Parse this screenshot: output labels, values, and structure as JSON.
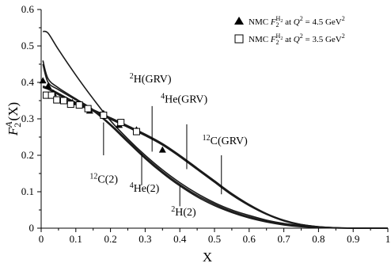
{
  "chart_data": {
    "type": "line",
    "xlabel": "X",
    "ylabel": "F_2^A(X)",
    "xlim": [
      0,
      1
    ],
    "ylim": [
      0,
      0.6
    ],
    "x_ticks": [
      "0",
      "0.1",
      "0.2",
      "0.3",
      "0.4",
      "0.5",
      "0.6",
      "0.7",
      "0.8",
      "0.9",
      "1"
    ],
    "y_ticks": [
      "0",
      "0.1",
      "0.2",
      "0.3",
      "0.4",
      "0.5",
      "0.6"
    ],
    "x_tick_values": [
      0,
      0.1,
      0.2,
      0.3,
      0.4,
      0.5,
      0.6,
      0.7,
      0.8,
      0.9,
      1
    ],
    "y_tick_values": [
      0,
      0.1,
      0.2,
      0.3,
      0.4,
      0.5,
      0.6
    ],
    "legend": [
      {
        "marker": "triangle-filled",
        "prefix": "NMC ",
        "F": "F",
        "sub": "2",
        "sup": "H",
        "supsub": "2",
        "mid": " at ",
        "Q": "Q",
        "qsup": "2",
        "rest": " = 4.5 GeV",
        "gsup": "2"
      },
      {
        "marker": "square-open",
        "prefix": "NMC ",
        "F": "F",
        "sub": "2",
        "sup": "H",
        "supsub": "2",
        "mid": " at ",
        "Q": "Q",
        "qsup": "2",
        "rest": " = 3.5 GeV",
        "gsup": "2"
      }
    ],
    "series": [
      {
        "x": [
          0.005,
          0.02,
          0.05,
          0.1,
          0.15,
          0.2,
          0.25,
          0.3,
          0.35,
          0.4,
          0.45,
          0.5,
          0.55,
          0.6,
          0.65,
          0.7,
          0.75,
          0.8,
          0.85,
          0.9,
          0.95,
          1.0
        ],
        "y": [
          0.54,
          0.535,
          0.49,
          0.42,
          0.355,
          0.295,
          0.245,
          0.2,
          0.16,
          0.125,
          0.095,
          0.07,
          0.05,
          0.035,
          0.022,
          0.013,
          0.007,
          0.003,
          0.001,
          0.0003,
          0.0001,
          0
        ]
      },
      {
        "x": [
          0.005,
          0.02,
          0.05,
          0.1,
          0.15,
          0.2,
          0.25,
          0.3,
          0.35,
          0.4,
          0.45,
          0.5,
          0.55,
          0.6,
          0.65,
          0.7,
          0.75,
          0.8,
          0.85,
          0.9,
          0.95,
          1.0
        ],
        "y": [
          0.46,
          0.41,
          0.385,
          0.355,
          0.325,
          0.285,
          0.24,
          0.195,
          0.155,
          0.12,
          0.09,
          0.066,
          0.046,
          0.031,
          0.019,
          0.011,
          0.005,
          0.002,
          0.0006,
          0.0002,
          5e-05,
          0
        ]
      },
      {
        "x": [
          0.005,
          0.02,
          0.05,
          0.1,
          0.15,
          0.2,
          0.25,
          0.3,
          0.35,
          0.4,
          0.45,
          0.5,
          0.55,
          0.6,
          0.65,
          0.7,
          0.75,
          0.8,
          0.85,
          0.9,
          0.95,
          1.0
        ],
        "y": [
          0.45,
          0.4,
          0.38,
          0.352,
          0.322,
          0.282,
          0.236,
          0.191,
          0.151,
          0.116,
          0.086,
          0.062,
          0.043,
          0.028,
          0.017,
          0.009,
          0.004,
          0.0015,
          0.0004,
          0.0001,
          3e-05,
          0
        ]
      },
      {
        "x": [
          0.005,
          0.02,
          0.05,
          0.1,
          0.15,
          0.2,
          0.25,
          0.3,
          0.35,
          0.4,
          0.45,
          0.5,
          0.55,
          0.6,
          0.65,
          0.7,
          0.75,
          0.8,
          0.85,
          0.9,
          0.95,
          1.0
        ],
        "y": [
          0.39,
          0.385,
          0.37,
          0.345,
          0.325,
          0.303,
          0.281,
          0.258,
          0.232,
          0.2,
          0.165,
          0.13,
          0.095,
          0.065,
          0.04,
          0.022,
          0.01,
          0.004,
          0.0012,
          0.0003,
          5e-05,
          0
        ]
      },
      {
        "x": [
          0.005,
          0.02,
          0.05,
          0.1,
          0.15,
          0.2,
          0.25,
          0.3,
          0.35,
          0.4,
          0.45,
          0.5,
          0.55,
          0.6,
          0.65,
          0.7,
          0.75,
          0.8,
          0.85,
          0.9,
          0.95,
          1.0
        ],
        "y": [
          0.388,
          0.383,
          0.368,
          0.343,
          0.323,
          0.301,
          0.279,
          0.256,
          0.23,
          0.198,
          0.163,
          0.128,
          0.093,
          0.063,
          0.039,
          0.021,
          0.01,
          0.004,
          0.0011,
          0.0003,
          5e-05,
          0
        ]
      },
      {
        "x": [
          0.005,
          0.02,
          0.05,
          0.1,
          0.15,
          0.2,
          0.25,
          0.3,
          0.35,
          0.4,
          0.45,
          0.5,
          0.55,
          0.6,
          0.65,
          0.7,
          0.75,
          0.8,
          0.85,
          0.9,
          0.95,
          1.0
        ],
        "y": [
          0.386,
          0.381,
          0.366,
          0.341,
          0.321,
          0.299,
          0.277,
          0.254,
          0.228,
          0.196,
          0.161,
          0.126,
          0.091,
          0.062,
          0.038,
          0.02,
          0.009,
          0.0035,
          0.001,
          0.0002,
          4e-05,
          0
        ]
      }
    ],
    "points_triangle": {
      "x": [
        0.005,
        0.02,
        0.035,
        0.06,
        0.09,
        0.14,
        0.18,
        0.225,
        0.275,
        0.35
      ],
      "y": [
        0.405,
        0.39,
        0.37,
        0.352,
        0.345,
        0.322,
        0.315,
        0.283,
        0.27,
        0.215
      ]
    },
    "points_square": {
      "x": [
        0.015,
        0.03,
        0.045,
        0.065,
        0.085,
        0.11,
        0.135,
        0.18,
        0.23,
        0.275
      ],
      "y": [
        0.365,
        0.365,
        0.352,
        0.35,
        0.34,
        0.338,
        0.328,
        0.31,
        0.29,
        0.265
      ]
    },
    "annotations": [
      {
        "id": "h2grv",
        "sup": "2",
        "label": "H(GRV)",
        "tx": 0.255,
        "ty": 0.4,
        "px": 0.32,
        "py1": 0.335,
        "py2": 0.21
      },
      {
        "id": "he4grv",
        "sup": "4",
        "label": "He(GRV)",
        "tx": 0.345,
        "ty": 0.345,
        "px": 0.42,
        "py1": 0.285,
        "py2": 0.162
      },
      {
        "id": "c12grv",
        "sup": "12",
        "label": "C(GRV)",
        "tx": 0.465,
        "ty": 0.23,
        "px": 0.52,
        "py1": 0.2,
        "py2": 0.093
      },
      {
        "id": "c12",
        "sup": "12",
        "label": "C(2)",
        "tx": 0.14,
        "ty": 0.125,
        "px": 0.18,
        "py1": 0.29,
        "py2": 0.2
      },
      {
        "id": "he4",
        "sup": "4",
        "label": "He(2)",
        "tx": 0.255,
        "ty": 0.1,
        "px": 0.29,
        "py1": 0.205,
        "py2": 0.118
      },
      {
        "id": "h2",
        "sup": "2",
        "label": "H(2)",
        "tx": 0.375,
        "ty": 0.035,
        "px": 0.4,
        "py1": 0.115,
        "py2": 0.06
      }
    ]
  }
}
